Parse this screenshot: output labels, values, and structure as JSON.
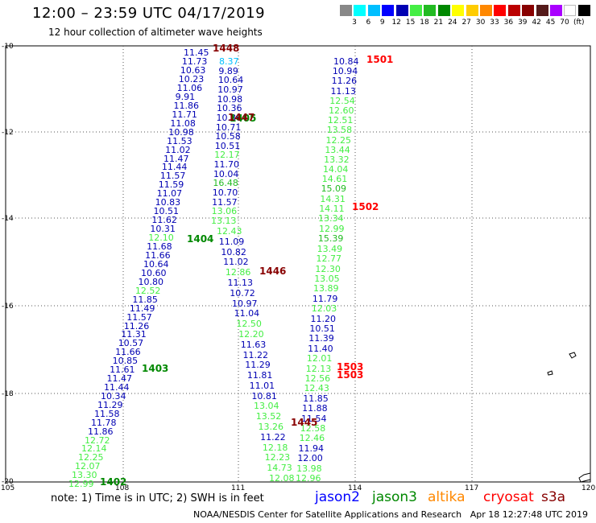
{
  "header": {
    "title": "12:00 – 23:59 UTC 04/17/2019",
    "subtitle": "12 hour collection of altimeter wave heights"
  },
  "color_scale": {
    "colors": [
      "#888888",
      "#00ffff",
      "#00bfff",
      "#0000ff",
      "#0000b3",
      "#44ee44",
      "#22bb22",
      "#008800",
      "#ffff00",
      "#ffcc00",
      "#ff8800",
      "#ff0000",
      "#bb0000",
      "#880000",
      "#551a1a",
      "#aa00ff",
      "#ffffff",
      "#000000"
    ],
    "labels": [
      "3",
      "6",
      "9",
      "12",
      "15",
      "18",
      "21",
      "24",
      "27",
      "30",
      "33",
      "36",
      "39",
      "42",
      "45",
      "70"
    ],
    "unit": "(ft)"
  },
  "axes": {
    "y_labels": [
      "-10",
      "-12",
      "-14",
      "-16",
      "-18",
      "-20"
    ],
    "x_labels": [
      "105",
      "108",
      "111",
      "114",
      "117",
      "120"
    ]
  },
  "tracks": [
    {
      "pass": "1402",
      "color": "#008800",
      "values": [
        {
          "t": "12.99",
          "c": "#44ee44"
        },
        {
          "t": "13.30",
          "c": "#44ee44"
        },
        {
          "t": "12.07",
          "c": "#44ee44"
        },
        {
          "t": "12.25",
          "c": "#44ee44"
        },
        {
          "t": "12.14",
          "c": "#44ee44"
        },
        {
          "t": "12.72",
          "c": "#44ee44"
        },
        {
          "t": "11.86",
          "c": "#0000b3"
        },
        {
          "t": "11.78",
          "c": "#0000b3"
        },
        {
          "t": "11.58",
          "c": "#0000b3"
        },
        {
          "t": "11.29",
          "c": "#0000b3"
        },
        {
          "t": "10.34",
          "c": "#0000b3"
        }
      ]
    },
    {
      "pass": "1403",
      "color": "#008800",
      "values": [
        {
          "t": "11.44",
          "c": "#0000b3"
        },
        {
          "t": "11.47",
          "c": "#0000b3"
        },
        {
          "t": "11.61",
          "c": "#0000b3"
        },
        {
          "t": "10.85",
          "c": "#0000b3"
        },
        {
          "t": "11.66",
          "c": "#0000b3"
        },
        {
          "t": "10.57",
          "c": "#0000b3"
        },
        {
          "t": "11.31",
          "c": "#0000b3"
        },
        {
          "t": "11.26",
          "c": "#0000b3"
        },
        {
          "t": "11.57",
          "c": "#0000b3"
        },
        {
          "t": "11.49",
          "c": "#0000b3"
        },
        {
          "t": "11.85",
          "c": "#0000b3"
        },
        {
          "t": "12.52",
          "c": "#44ee44"
        },
        {
          "t": "10.80",
          "c": "#0000b3"
        },
        {
          "t": "10.60",
          "c": "#0000b3"
        }
      ]
    },
    {
      "pass": "1404",
      "color": "#008800",
      "values": [
        {
          "t": "10.64",
          "c": "#0000b3"
        },
        {
          "t": "11.66",
          "c": "#0000b3"
        },
        {
          "t": "11.68",
          "c": "#0000b3"
        },
        {
          "t": "12.10",
          "c": "#44ee44"
        },
        {
          "t": "10.31",
          "c": "#0000b3"
        },
        {
          "t": "11.62",
          "c": "#0000b3"
        },
        {
          "t": "10.51",
          "c": "#0000b3"
        },
        {
          "t": "10.83",
          "c": "#0000b3"
        },
        {
          "t": "11.07",
          "c": "#0000b3"
        },
        {
          "t": "11.59",
          "c": "#0000b3"
        },
        {
          "t": "11.57",
          "c": "#0000b3"
        },
        {
          "t": "11.44",
          "c": "#0000b3"
        },
        {
          "t": "11.47",
          "c": "#0000b3"
        },
        {
          "t": "11.02",
          "c": "#0000b3"
        },
        {
          "t": "11.53",
          "c": "#0000b3"
        },
        {
          "t": "10.98",
          "c": "#0000b3"
        },
        {
          "t": "11.08",
          "c": "#0000b3"
        },
        {
          "t": "11.71",
          "c": "#0000b3"
        },
        {
          "t": "11.86",
          "c": "#0000b3"
        },
        {
          "t": "9.91",
          "c": "#0000b3"
        },
        {
          "t": "11.06",
          "c": "#0000b3"
        },
        {
          "t": "10.23",
          "c": "#0000b3"
        },
        {
          "t": "10.63",
          "c": "#0000b3"
        },
        {
          "t": "11.73",
          "c": "#0000b3"
        },
        {
          "t": "11.45",
          "c": "#0000b3"
        }
      ]
    },
    {
      "pass": "1405",
      "color": "#008800",
      "values": [
        {
          "t": "8.37",
          "c": "#00bfff"
        },
        {
          "t": "9.89",
          "c": "#0000b3"
        },
        {
          "t": "10.64",
          "c": "#0000b3"
        },
        {
          "t": "10.97",
          "c": "#0000b3"
        },
        {
          "t": "10.98",
          "c": "#0000b3"
        },
        {
          "t": "10.36",
          "c": "#0000b3"
        },
        {
          "t": "10.86",
          "c": "#0000b3"
        },
        {
          "t": "10.71",
          "c": "#0000b3"
        },
        {
          "t": "10.58",
          "c": "#0000b3"
        },
        {
          "t": "10.51",
          "c": "#0000b3"
        },
        {
          "t": "12.17",
          "c": "#44ee44"
        },
        {
          "t": "11.70",
          "c": "#0000b3"
        },
        {
          "t": "10.04",
          "c": "#0000b3"
        },
        {
          "t": "16.48",
          "c": "#22bb22"
        },
        {
          "t": "10.70",
          "c": "#0000b3"
        },
        {
          "t": "11.57",
          "c": "#0000b3"
        },
        {
          "t": "13.06",
          "c": "#44ee44"
        },
        {
          "t": "13.13",
          "c": "#44ee44"
        }
      ]
    },
    {
      "pass": "1446",
      "color": "#880000",
      "values": [
        {
          "t": "12.43",
          "c": "#44ee44"
        },
        {
          "t": "11.09",
          "c": "#0000b3"
        },
        {
          "t": "10.82",
          "c": "#0000b3"
        },
        {
          "t": "11.02",
          "c": "#0000b3"
        },
        {
          "t": "12.86",
          "c": "#44ee44"
        },
        {
          "t": "11.13",
          "c": "#0000b3"
        },
        {
          "t": "10.72",
          "c": "#0000b3"
        },
        {
          "t": "10.97",
          "c": "#0000b3"
        },
        {
          "t": "11.04",
          "c": "#0000b3"
        },
        {
          "t": "12.50",
          "c": "#44ee44"
        },
        {
          "t": "12.20",
          "c": "#44ee44"
        },
        {
          "t": "11.63",
          "c": "#0000b3"
        },
        {
          "t": "11.22",
          "c": "#0000b3"
        },
        {
          "t": "11.29",
          "c": "#0000b3"
        },
        {
          "t": "11.81",
          "c": "#0000b3"
        },
        {
          "t": "11.01",
          "c": "#0000b3"
        },
        {
          "t": "10.81",
          "c": "#0000b3"
        },
        {
          "t": "13.04",
          "c": "#44ee44"
        },
        {
          "t": "13.52",
          "c": "#44ee44"
        },
        {
          "t": "13.26",
          "c": "#44ee44"
        },
        {
          "t": "11.22",
          "c": "#0000b3"
        },
        {
          "t": "12.18",
          "c": "#44ee44"
        },
        {
          "t": "12.23",
          "c": "#44ee44"
        },
        {
          "t": "14.73",
          "c": "#44ee44"
        },
        {
          "t": "12.08",
          "c": "#44ee44"
        }
      ]
    },
    {
      "pass": "1501",
      "color": "#ff0000",
      "values": [
        {
          "t": "10.84",
          "c": "#0000b3"
        },
        {
          "t": "10.94",
          "c": "#0000b3"
        },
        {
          "t": "11.26",
          "c": "#0000b3"
        },
        {
          "t": "11.13",
          "c": "#0000b3"
        },
        {
          "t": "12.54",
          "c": "#44ee44"
        },
        {
          "t": "12.60",
          "c": "#44ee44"
        },
        {
          "t": "12.51",
          "c": "#44ee44"
        },
        {
          "t": "13.58",
          "c": "#44ee44"
        },
        {
          "t": "12.25",
          "c": "#44ee44"
        },
        {
          "t": "13.44",
          "c": "#44ee44"
        },
        {
          "t": "13.32",
          "c": "#44ee44"
        },
        {
          "t": "14.04",
          "c": "#44ee44"
        },
        {
          "t": "14.61",
          "c": "#44ee44"
        },
        {
          "t": "15.09",
          "c": "#22bb22"
        },
        {
          "t": "14.31",
          "c": "#44ee44"
        },
        {
          "t": "14.11",
          "c": "#44ee44"
        },
        {
          "t": "13.34",
          "c": "#44ee44"
        }
      ]
    },
    {
      "pass": "1502",
      "color": "#ff0000",
      "values": [
        {
          "t": "12.99",
          "c": "#44ee44"
        },
        {
          "t": "15.39",
          "c": "#22bb22"
        },
        {
          "t": "13.49",
          "c": "#44ee44"
        },
        {
          "t": "12.77",
          "c": "#44ee44"
        },
        {
          "t": "12.30",
          "c": "#44ee44"
        },
        {
          "t": "13.05",
          "c": "#44ee44"
        },
        {
          "t": "13.89",
          "c": "#44ee44"
        },
        {
          "t": "11.79",
          "c": "#0000b3"
        },
        {
          "t": "12.03",
          "c": "#44ee44"
        },
        {
          "t": "11.20",
          "c": "#0000b3"
        },
        {
          "t": "10.51",
          "c": "#0000b3"
        },
        {
          "t": "11.39",
          "c": "#0000b3"
        },
        {
          "t": "11.40",
          "c": "#0000b3"
        },
        {
          "t": "12.01",
          "c": "#44ee44"
        },
        {
          "t": "12.13",
          "c": "#44ee44"
        },
        {
          "t": "12.56",
          "c": "#44ee44"
        },
        {
          "t": "12.43",
          "c": "#44ee44"
        },
        {
          "t": "11.85",
          "c": "#0000b3"
        },
        {
          "t": "11.88",
          "c": "#0000b3"
        },
        {
          "t": "11.54",
          "c": "#0000b3"
        },
        {
          "t": "12.58",
          "c": "#44ee44"
        },
        {
          "t": "12.46",
          "c": "#44ee44"
        },
        {
          "t": "11.94",
          "c": "#0000b3"
        },
        {
          "t": "12.00",
          "c": "#0000b3"
        },
        {
          "t": "13.98",
          "c": "#44ee44"
        },
        {
          "t": "12.96",
          "c": "#44ee44"
        }
      ]
    }
  ],
  "extra_labels": [
    {
      "t": "1448",
      "c": "#880000"
    },
    {
      "t": "1447",
      "c": "#880000"
    },
    {
      "t": "1503",
      "c": "#ff0000"
    },
    {
      "t": "1503",
      "c": "#ff0000"
    },
    {
      "t": "1445",
      "c": "#880000"
    }
  ],
  "footer": {
    "note": "note:  1) Time is in UTC;  2) SWH is in feet",
    "satellites": [
      {
        "name": "jason2",
        "color": "#0000ff"
      },
      {
        "name": "jason3",
        "color": "#008800"
      },
      {
        "name": "altika",
        "color": "#ff8800"
      },
      {
        "name": "cryosat",
        "color": "#ff0000"
      },
      {
        "name": "s3a",
        "color": "#880000"
      }
    ],
    "credit": "NOAA/NESDIS Center for Satellite Applications and Research",
    "timestamp": "Apr 18 12:27:48 UTC 2019"
  }
}
